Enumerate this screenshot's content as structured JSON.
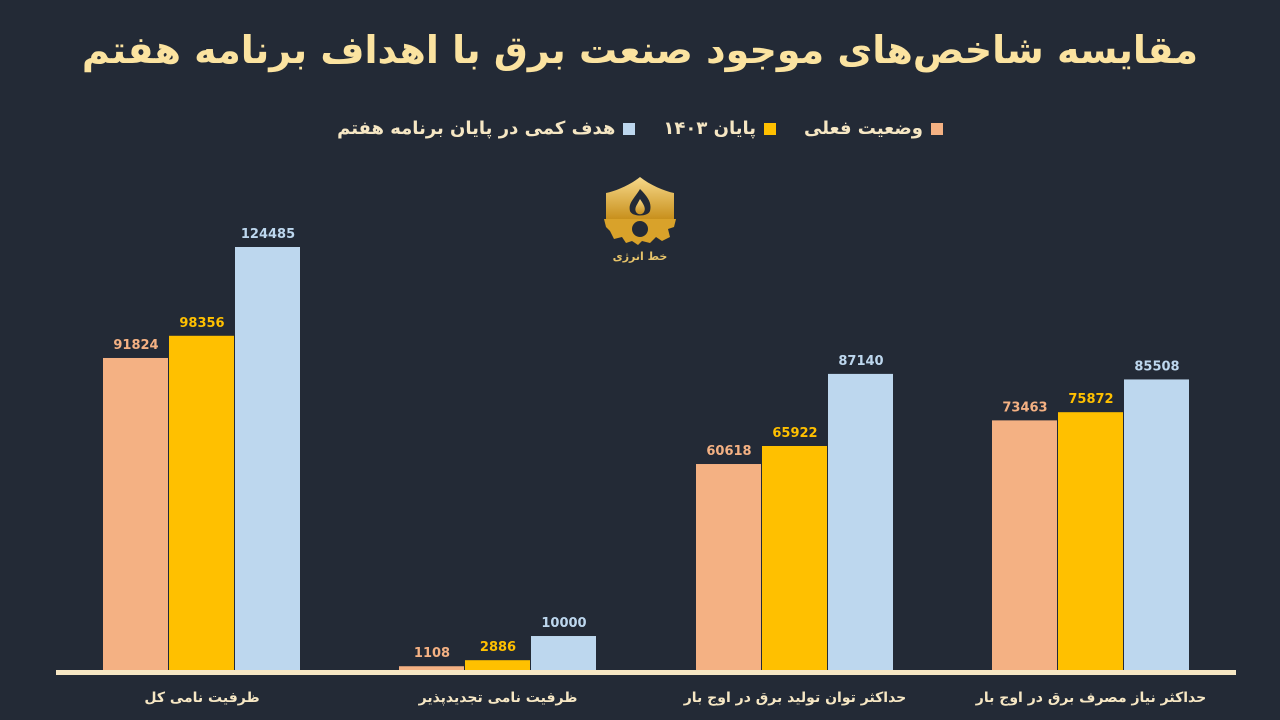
{
  "chart_data": {
    "type": "bar",
    "title": "مقایسه شاخص‌های موجود صنعت برق با اهداف برنامه هفتم",
    "categories": [
      "ظرفیت نامی کل",
      "ظرفیت نامی تجدیدپذیر",
      "حداکثر توان تولید برق در اوج بار",
      "حداکثر نیاز مصرف برق در اوج بار"
    ],
    "series": [
      {
        "name": "وضعیت فعلی",
        "color": "#f4b183",
        "values": [
          91824,
          1108,
          60618,
          73463
        ]
      },
      {
        "name": "پایان ۱۴۰۳",
        "color": "#ffc000",
        "values": [
          98356,
          2886,
          65922,
          75872
        ]
      },
      {
        "name": "هدف کمی در پایان برنامه هفتم",
        "color": "#bdd7ee",
        "values": [
          124485,
          10000,
          87140,
          85508
        ]
      }
    ],
    "ylim": [
      0,
      124485
    ],
    "legend_position": "top-center",
    "grid": false,
    "label_colors": [
      "#f4b183",
      "#ffc000",
      "#bdd7ee"
    ]
  },
  "logo": {
    "text": "خط انرژی",
    "icon": "flame-gear-icon"
  }
}
